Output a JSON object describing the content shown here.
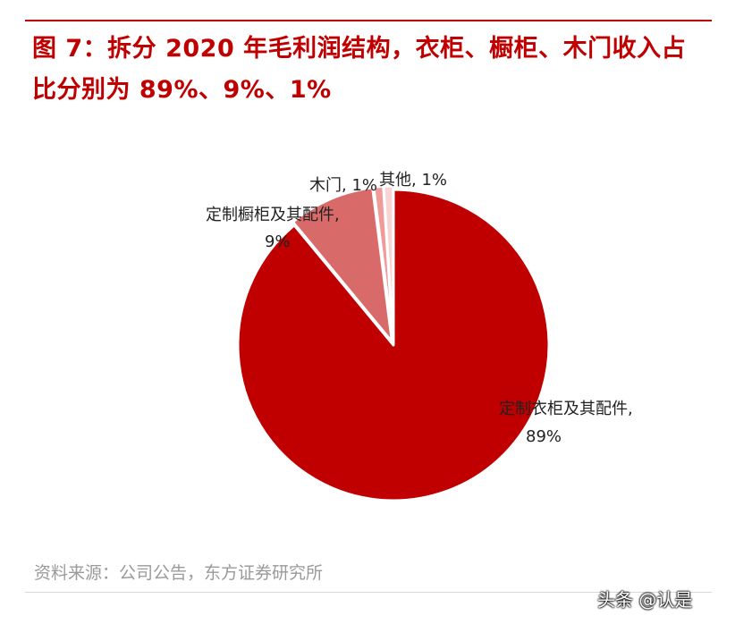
{
  "figure": {
    "title_line1": "图 7：拆分 2020 年毛利润结构，衣柜、橱柜、木门收入占",
    "title_line2": "比分别为 89%、9%、1%",
    "source": "资料来源：公司公告，东方证券研究所",
    "watermark": "头条 @认是"
  },
  "colors": {
    "title": "#c00000",
    "slice_wardrobe": "#c00000",
    "slice_cabinet": "#d96a6a",
    "slice_door": "#f09a9a",
    "slice_other": "#f8d4d4",
    "border": "#ffffff"
  },
  "chart_data": {
    "type": "pie",
    "title": "",
    "slices": [
      {
        "name": "定制衣柜及其配件",
        "label_line1": "定制衣柜及其配件,",
        "label_line2": "89%",
        "value": 89,
        "color": "#c00000"
      },
      {
        "name": "定制橱柜及其配件",
        "label_line1": "定制橱柜及其配件,",
        "label_line2": "9%",
        "value": 9,
        "color": "#d96a6a"
      },
      {
        "name": "木门",
        "label_line1": "木门, 1%",
        "label_line2": "",
        "value": 1,
        "color": "#f09a9a"
      },
      {
        "name": "其他",
        "label_line1": "其他, 1%",
        "label_line2": "",
        "value": 1,
        "color": "#f8d4d4"
      }
    ],
    "start_angle": "12 o'clock",
    "direction": "clockwise",
    "legend": "none",
    "exploded_slices": [
      "定制橱柜及其配件",
      "木门",
      "其他"
    ]
  }
}
